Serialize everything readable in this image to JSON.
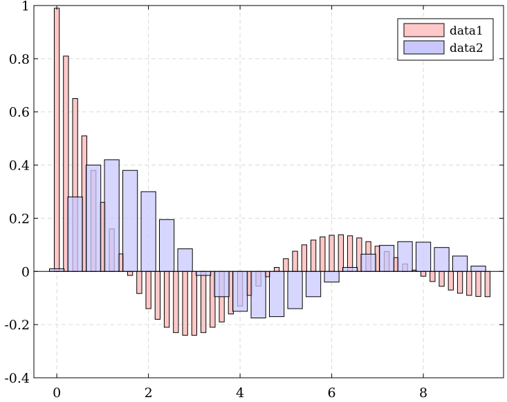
{
  "chart_data": {
    "type": "bar",
    "xlim": [
      -0.5,
      9.75
    ],
    "ylim": [
      -0.4,
      1.0
    ],
    "grid": true,
    "grid_style": "dashed",
    "legend_position": "top-right",
    "x_ticks": [
      0,
      2,
      4,
      6,
      8
    ],
    "x_tick_labels": [
      "0",
      "2",
      "4",
      "6",
      "8"
    ],
    "y_ticks": [
      -0.4,
      -0.2,
      0,
      0.2,
      0.4,
      0.6,
      0.8,
      1.0
    ],
    "y_tick_labels": [
      "-0.4",
      "-0.2",
      "0",
      "0.2",
      "0.4",
      "0.6",
      "0.8",
      "1"
    ],
    "series": [
      {
        "name": "data1",
        "fill": "#ffc8c8",
        "stroke": "#000000",
        "x": [
          0,
          0.2,
          0.4,
          0.6,
          0.8,
          1.0,
          1.2,
          1.4,
          1.6,
          1.8,
          2.0,
          2.2,
          2.4,
          2.6,
          2.8,
          3.0,
          3.2,
          3.4,
          3.6,
          3.8,
          4.0,
          4.2,
          4.4,
          4.6,
          4.8,
          5.0,
          5.2,
          5.4,
          5.6,
          5.8,
          6.0,
          6.2,
          6.4,
          6.6,
          6.8,
          7.0,
          7.2,
          7.4,
          7.6,
          7.8,
          8.0,
          8.2,
          8.4,
          8.6,
          8.8,
          9.0,
          9.2,
          9.4
        ],
        "values": [
          0.99,
          0.81,
          0.65,
          0.51,
          0.38,
          0.26,
          0.16,
          0.066,
          -0.015,
          -0.083,
          -0.14,
          -0.18,
          -0.21,
          -0.23,
          -0.24,
          -0.24,
          -0.23,
          -0.21,
          -0.19,
          -0.16,
          -0.13,
          -0.09,
          -0.055,
          -0.02,
          0.015,
          0.048,
          0.076,
          0.1,
          0.118,
          0.13,
          0.136,
          0.138,
          0.134,
          0.126,
          0.112,
          0.095,
          0.075,
          0.052,
          0.028,
          0.005,
          -0.018,
          -0.038,
          -0.056,
          -0.07,
          -0.082,
          -0.09,
          -0.094,
          -0.095
        ]
      },
      {
        "name": "data2",
        "fill": "#c8c8ff",
        "stroke": "#000000",
        "x": [
          0,
          0.4,
          0.8,
          1.2,
          1.6,
          2.0,
          2.4,
          2.8,
          3.2,
          3.6,
          4.0,
          4.4,
          4.8,
          5.2,
          5.6,
          6.0,
          6.4,
          6.8,
          7.2,
          7.6,
          8.0,
          8.4,
          8.8,
          9.2
        ],
        "values": [
          0.01,
          0.28,
          0.4,
          0.42,
          0.38,
          0.3,
          0.195,
          0.085,
          -0.015,
          -0.095,
          -0.15,
          -0.175,
          -0.17,
          -0.14,
          -0.095,
          -0.04,
          0.015,
          0.065,
          0.098,
          0.112,
          0.11,
          0.09,
          0.058,
          0.02
        ]
      }
    ]
  }
}
